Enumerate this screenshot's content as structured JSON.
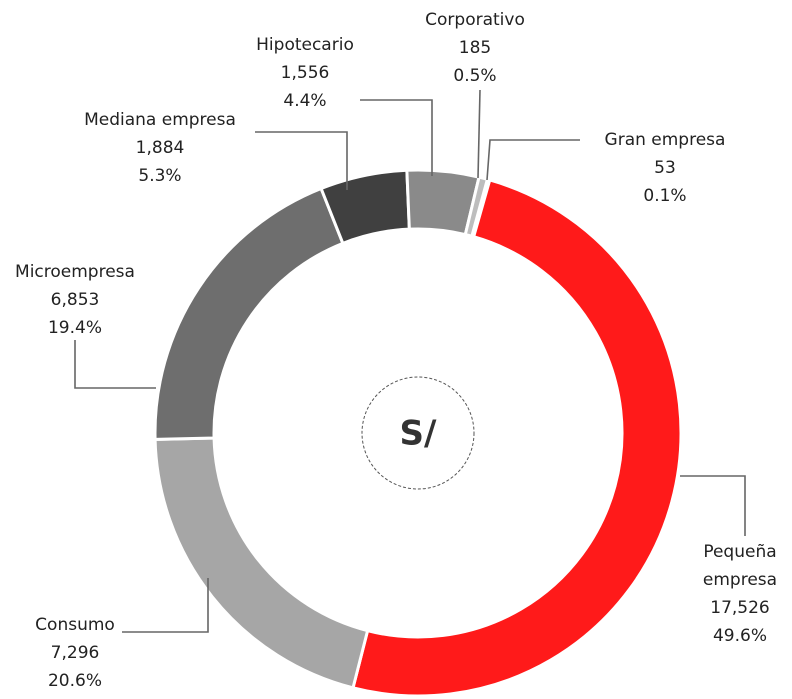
{
  "chart_data": {
    "type": "donut",
    "center_label": "S/",
    "categories": [
      "Gran empresa",
      "Pequeña empresa",
      "Consumo",
      "Microempresa",
      "Mediana empresa",
      "Hipotecario",
      "Corporativo"
    ],
    "values": [
      53,
      17526,
      7296,
      6853,
      1884,
      1556,
      185
    ],
    "value_labels": [
      "53",
      "17,526",
      "7,296",
      "6,853",
      "1,884",
      "1,556",
      "185"
    ],
    "percentages": [
      0.1,
      49.6,
      20.6,
      19.4,
      5.3,
      4.4,
      0.5
    ],
    "percentage_labels": [
      "0.1%",
      "49.6%",
      "20.6%",
      "19.4%",
      "5.3%",
      "4.4%",
      "0.5%"
    ],
    "colors": [
      "#c8c8c8",
      "#ff1a1a",
      "#a6a6a6",
      "#6e6e6e",
      "#404040",
      "#8a8a8a",
      "#bdbdbd"
    ]
  }
}
